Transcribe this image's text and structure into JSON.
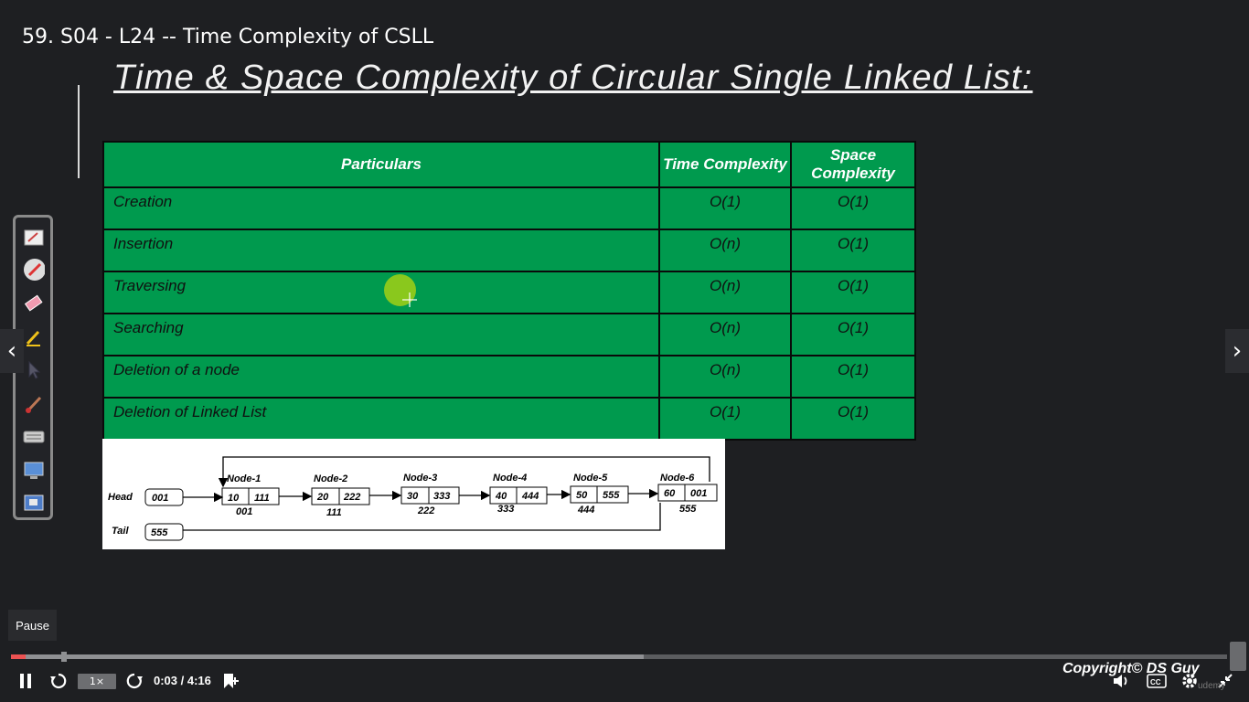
{
  "lecture_title": "59. S04 - L24 -- Time Complexity of CSLL",
  "slide": {
    "heading": "Time & Space Complexity of Circular Single Linked List:",
    "table": {
      "headers": [
        "Particulars",
        "Time Complexity",
        "Space Complexity"
      ],
      "rows": [
        {
          "particular": "Creation",
          "time": "O(1)",
          "space": "O(1)"
        },
        {
          "particular": "Insertion",
          "time": "O(n)",
          "space": "O(1)"
        },
        {
          "particular": "Traversing",
          "time": "O(n)",
          "space": "O(1)"
        },
        {
          "particular": "Searching",
          "time": "O(n)",
          "space": "O(1)"
        },
        {
          "particular": "Deletion of a node",
          "time": "O(n)",
          "space": "O(1)"
        },
        {
          "particular": "Deletion of Linked List",
          "time": "O(1)",
          "space": "O(1)"
        }
      ]
    },
    "diagram": {
      "head_label": "Head",
      "head_value": "001",
      "tail_label": "Tail",
      "tail_value": "555",
      "nodes": [
        {
          "name": "Node-1",
          "value": "10",
          "next": "111",
          "address": "001"
        },
        {
          "name": "Node-2",
          "value": "20",
          "next": "222",
          "address": "111"
        },
        {
          "name": "Node-3",
          "value": "30",
          "next": "333",
          "address": "222"
        },
        {
          "name": "Node-4",
          "value": "40",
          "next": "444",
          "address": "333"
        },
        {
          "name": "Node-5",
          "value": "50",
          "next": "555",
          "address": "444"
        },
        {
          "name": "Node-6",
          "value": "60",
          "next": "001",
          "address": "555"
        }
      ]
    }
  },
  "toolbar": {
    "tools": [
      "whiteboard-icon",
      "pen-red-icon",
      "eraser-icon",
      "highlighter-icon",
      "pointer-arrow-icon",
      "brush-icon",
      "keyboard-icon",
      "screen-icon",
      "capture-icon"
    ]
  },
  "nav": {
    "prev": "‹",
    "next": "›"
  },
  "player": {
    "tooltip": "Pause",
    "speed": "1×",
    "current_time": "0:03",
    "duration": "4:16",
    "time_display": "0:03 / 4:16",
    "played_fraction": 0.0117,
    "buffered_fraction": 0.52
  },
  "copyright": "Copyright© DS Guy",
  "watermark": "udemy",
  "colors": {
    "table_green": "#009a4e",
    "progress_red": "#ec5252",
    "background": "#1e1f22"
  }
}
